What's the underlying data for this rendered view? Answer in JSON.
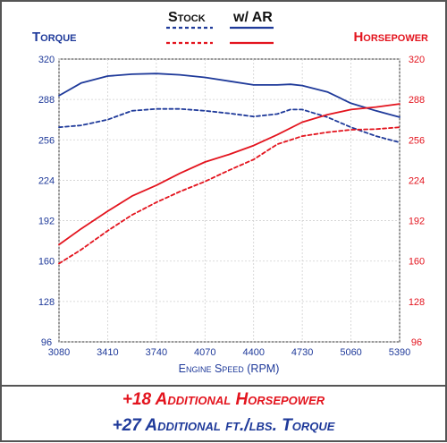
{
  "legend": {
    "stock_label": "Stock",
    "ar_label": "w/ AR"
  },
  "footer": {
    "line1": "+18 Additional Horsepower",
    "line2": "+27 Additional ft./lbs. Torque"
  },
  "colors": {
    "torque": "#1f3a9a",
    "horsepower": "#e3141e",
    "border": "#555555"
  },
  "chart_data": {
    "type": "line",
    "xlabel": "Engine Speed (RPM)",
    "y_left_label": "Torque",
    "y_right_label": "Horsepower",
    "xlim": [
      3080,
      5390
    ],
    "ylim": [
      96,
      320
    ],
    "x_ticks": [
      "3080",
      "3410",
      "3740",
      "4070",
      "4400",
      "4730",
      "5060",
      "5390"
    ],
    "y_ticks": [
      "320",
      "288",
      "256",
      "224",
      "192",
      "160",
      "128",
      "96"
    ],
    "grid": true,
    "series": [
      {
        "name": "Stock Torque",
        "axis": "torque",
        "style": "dashed",
        "x": [
          3080,
          3230,
          3410,
          3575,
          3740,
          3900,
          4070,
          4235,
          4400,
          4560,
          4650,
          4730,
          4900,
          5060,
          5230,
          5390
        ],
        "y": [
          266,
          267.5,
          272,
          279,
          280.5,
          280.5,
          279,
          277,
          274.5,
          276.5,
          280,
          280,
          274,
          266,
          259,
          254
        ]
      },
      {
        "name": "AR Torque",
        "axis": "torque",
        "style": "solid",
        "x": [
          3080,
          3230,
          3410,
          3575,
          3740,
          3900,
          4070,
          4235,
          4400,
          4560,
          4650,
          4730,
          4900,
          5060,
          5230,
          5390
        ],
        "y": [
          291,
          301,
          306.5,
          308,
          308.5,
          307.5,
          305.5,
          302.5,
          299.5,
          299.5,
          300,
          299,
          294,
          285,
          279,
          274
        ]
      },
      {
        "name": "Stock Horsepower",
        "axis": "horsepower",
        "style": "dashed",
        "x": [
          3080,
          3230,
          3410,
          3575,
          3740,
          3900,
          4070,
          4235,
          4400,
          4560,
          4730,
          4900,
          5060,
          5230,
          5390
        ],
        "y": [
          158,
          169,
          184,
          196.5,
          206.5,
          215,
          223,
          232,
          240.5,
          252.5,
          259,
          262,
          264,
          264.5,
          266
        ]
      },
      {
        "name": "AR Horsepower",
        "axis": "horsepower",
        "style": "solid",
        "x": [
          3080,
          3230,
          3410,
          3575,
          3740,
          3900,
          4070,
          4235,
          4400,
          4560,
          4730,
          4900,
          5060,
          5230,
          5390
        ],
        "y": [
          173,
          185.5,
          199.5,
          211.5,
          220,
          229.5,
          238.5,
          244.5,
          251.5,
          260,
          270,
          276,
          280,
          282,
          284.5
        ]
      }
    ]
  }
}
